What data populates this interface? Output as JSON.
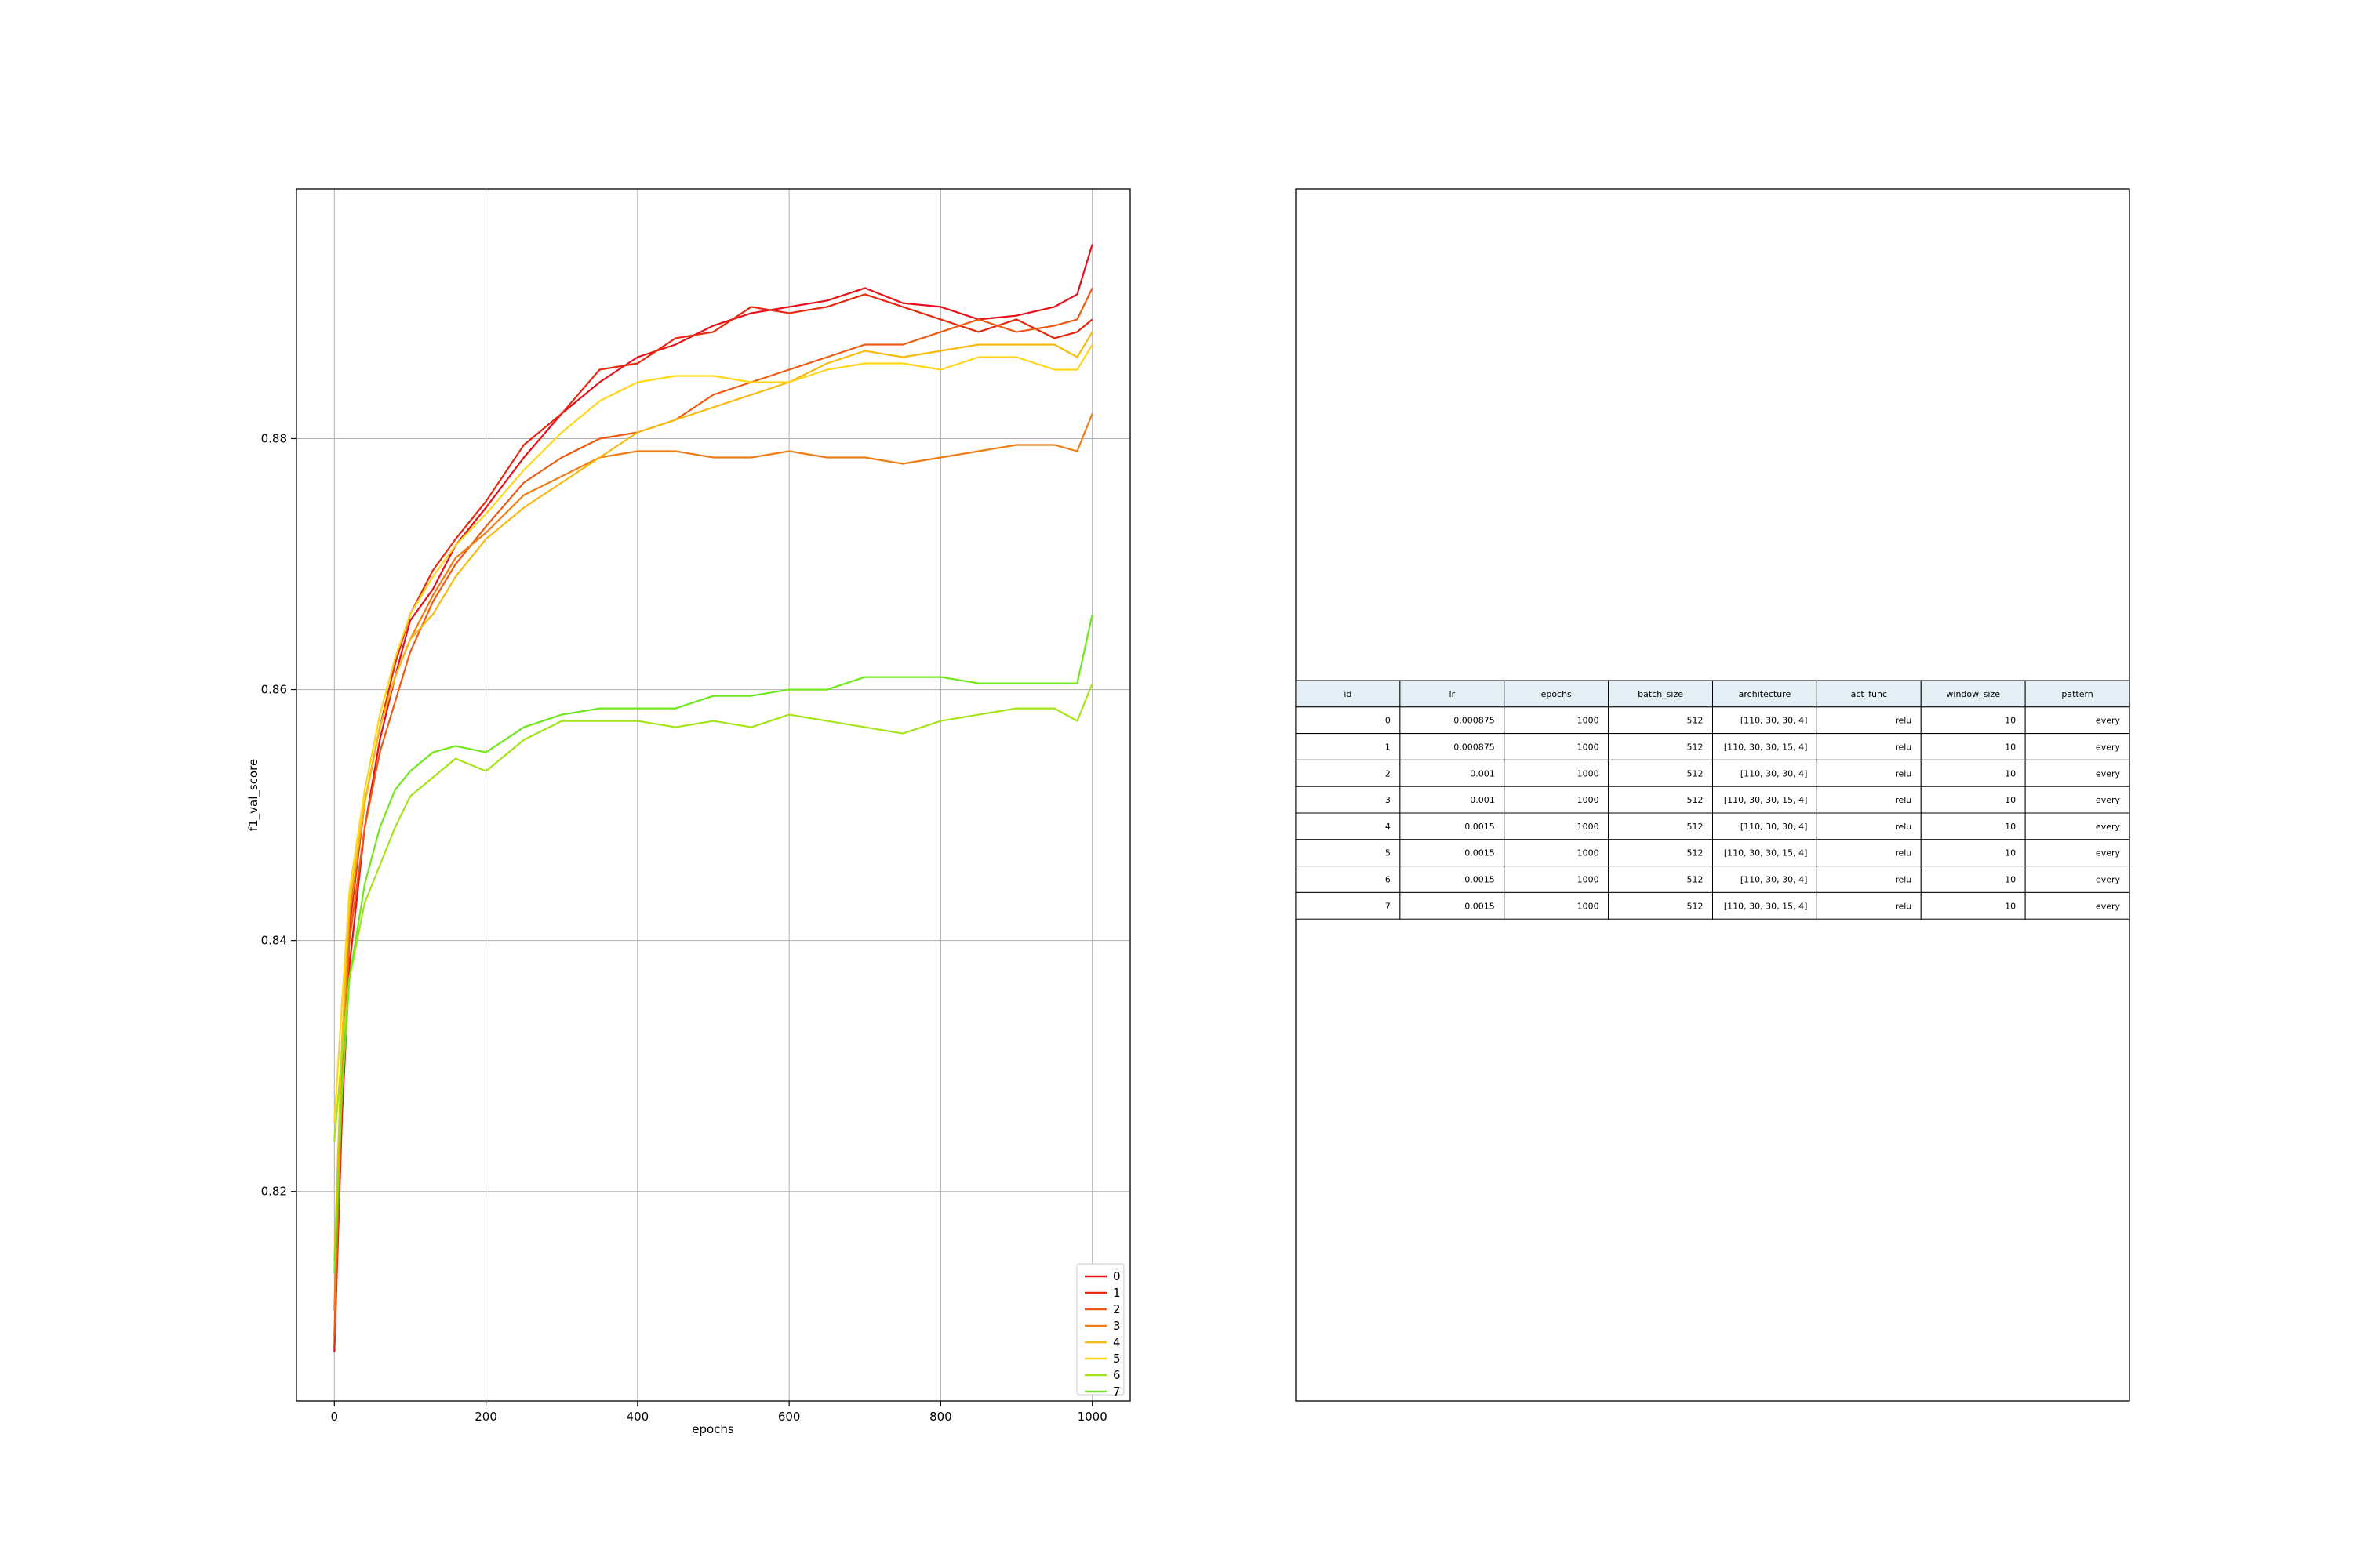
{
  "chart_data": [
    {
      "type": "line",
      "title": "",
      "xlabel": "epochs",
      "ylabel": "f1_val_score",
      "xlim": [
        -50,
        1050
      ],
      "ylim": [
        0.8033,
        0.8999
      ],
      "xticks": [
        0,
        200,
        400,
        600,
        800,
        1000
      ],
      "yticks": [
        0.82,
        0.84,
        0.86,
        0.88
      ],
      "xtick_labels": [
        "0",
        "200",
        "400",
        "600",
        "800",
        "1000"
      ],
      "ytick_labels": [
        "0.82",
        "0.84",
        "0.86",
        "0.88"
      ],
      "grid": true,
      "legend_position": "lower-right",
      "series": [
        {
          "name": "0",
          "color": "#e8101a",
          "points": [
            [
              0,
              0.8072
            ],
            [
              10,
              0.826
            ],
            [
              20,
              0.838
            ],
            [
              40,
              0.849
            ],
            [
              60,
              0.856
            ],
            [
              80,
              0.861
            ],
            [
              100,
              0.8655
            ],
            [
              130,
              0.868
            ],
            [
              160,
              0.8715
            ],
            [
              200,
              0.8745
            ],
            [
              250,
              0.8785
            ],
            [
              300,
              0.882
            ],
            [
              350,
              0.8845
            ],
            [
              400,
              0.8865
            ],
            [
              450,
              0.8875
            ],
            [
              500,
              0.889
            ],
            [
              550,
              0.89
            ],
            [
              600,
              0.8905
            ],
            [
              650,
              0.891
            ],
            [
              700,
              0.892
            ],
            [
              750,
              0.8908
            ],
            [
              800,
              0.8905
            ],
            [
              850,
              0.8895
            ],
            [
              900,
              0.8898
            ],
            [
              950,
              0.8905
            ],
            [
              980,
              0.8915
            ],
            [
              1000,
              0.8955
            ]
          ]
        },
        {
          "name": "1",
          "color": "#e52a10",
          "points": [
            [
              0,
              0.8075
            ],
            [
              10,
              0.829
            ],
            [
              20,
              0.841
            ],
            [
              40,
              0.851
            ],
            [
              60,
              0.857
            ],
            [
              80,
              0.862
            ],
            [
              100,
              0.866
            ],
            [
              130,
              0.8695
            ],
            [
              160,
              0.872
            ],
            [
              200,
              0.875
            ],
            [
              250,
              0.8795
            ],
            [
              300,
              0.882
            ],
            [
              350,
              0.8855
            ],
            [
              400,
              0.886
            ],
            [
              450,
              0.888
            ],
            [
              500,
              0.8885
            ],
            [
              550,
              0.8905
            ],
            [
              600,
              0.89
            ],
            [
              650,
              0.8905
            ],
            [
              700,
              0.8915
            ],
            [
              750,
              0.8905
            ],
            [
              800,
              0.8895
            ],
            [
              850,
              0.8885
            ],
            [
              900,
              0.8895
            ],
            [
              950,
              0.888
            ],
            [
              980,
              0.8885
            ],
            [
              1000,
              0.8895
            ]
          ]
        },
        {
          "name": "2",
          "color": "#ee5a12",
          "points": [
            [
              0,
              0.8085
            ],
            [
              10,
              0.828
            ],
            [
              20,
              0.84
            ],
            [
              40,
              0.849
            ],
            [
              60,
              0.855
            ],
            [
              80,
              0.859
            ],
            [
              100,
              0.863
            ],
            [
              130,
              0.867
            ],
            [
              160,
              0.87
            ],
            [
              200,
              0.873
            ],
            [
              250,
              0.8765
            ],
            [
              300,
              0.8785
            ],
            [
              350,
              0.88
            ],
            [
              400,
              0.8805
            ],
            [
              450,
              0.8815
            ],
            [
              500,
              0.8835
            ],
            [
              550,
              0.8845
            ],
            [
              600,
              0.8855
            ],
            [
              650,
              0.8865
            ],
            [
              700,
              0.8875
            ],
            [
              750,
              0.8875
            ],
            [
              800,
              0.8885
            ],
            [
              850,
              0.8895
            ],
            [
              900,
              0.8885
            ],
            [
              950,
              0.889
            ],
            [
              980,
              0.8895
            ],
            [
              1000,
              0.892
            ]
          ]
        },
        {
          "name": "3",
          "color": "#f07d14",
          "points": [
            [
              0,
              0.8105
            ],
            [
              10,
              0.83
            ],
            [
              20,
              0.842
            ],
            [
              40,
              0.851
            ],
            [
              60,
              0.857
            ],
            [
              80,
              0.861
            ],
            [
              100,
              0.864
            ],
            [
              130,
              0.8675
            ],
            [
              160,
              0.8705
            ],
            [
              200,
              0.8725
            ],
            [
              250,
              0.8755
            ],
            [
              300,
              0.877
            ],
            [
              350,
              0.8785
            ],
            [
              400,
              0.879
            ],
            [
              450,
              0.879
            ],
            [
              500,
              0.8785
            ],
            [
              550,
              0.8785
            ],
            [
              600,
              0.879
            ],
            [
              650,
              0.8785
            ],
            [
              700,
              0.8785
            ],
            [
              750,
              0.878
            ],
            [
              800,
              0.8785
            ],
            [
              850,
              0.879
            ],
            [
              900,
              0.8795
            ],
            [
              950,
              0.8795
            ],
            [
              980,
              0.879
            ],
            [
              1000,
              0.882
            ]
          ]
        },
        {
          "name": "4",
          "color": "#f8ba10",
          "points": [
            [
              0,
              0.8145
            ],
            [
              10,
              0.832
            ],
            [
              20,
              0.843
            ],
            [
              40,
              0.851
            ],
            [
              60,
              0.857
            ],
            [
              80,
              0.861
            ],
            [
              100,
              0.864
            ],
            [
              130,
              0.866
            ],
            [
              160,
              0.869
            ],
            [
              200,
              0.872
            ],
            [
              250,
              0.8745
            ],
            [
              300,
              0.8765
            ],
            [
              350,
              0.8785
            ],
            [
              400,
              0.8805
            ],
            [
              450,
              0.8815
            ],
            [
              500,
              0.8825
            ],
            [
              550,
              0.8835
            ],
            [
              600,
              0.8845
            ],
            [
              650,
              0.886
            ],
            [
              700,
              0.887
            ],
            [
              750,
              0.8865
            ],
            [
              800,
              0.887
            ],
            [
              850,
              0.8875
            ],
            [
              900,
              0.8875
            ],
            [
              950,
              0.8875
            ],
            [
              980,
              0.8865
            ],
            [
              1000,
              0.8885
            ]
          ]
        },
        {
          "name": "5",
          "color": "#ffd61a",
          "points": [
            [
              0,
              0.8255
            ],
            [
              10,
              0.835
            ],
            [
              20,
              0.844
            ],
            [
              40,
              0.852
            ],
            [
              60,
              0.858
            ],
            [
              80,
              0.8625
            ],
            [
              100,
              0.866
            ],
            [
              130,
              0.869
            ],
            [
              160,
              0.8715
            ],
            [
              200,
              0.874
            ],
            [
              250,
              0.8775
            ],
            [
              300,
              0.8805
            ],
            [
              350,
              0.883
            ],
            [
              400,
              0.8845
            ],
            [
              450,
              0.885
            ],
            [
              500,
              0.885
            ],
            [
              550,
              0.8845
            ],
            [
              600,
              0.8845
            ],
            [
              650,
              0.8855
            ],
            [
              700,
              0.886
            ],
            [
              750,
              0.886
            ],
            [
              800,
              0.8855
            ],
            [
              850,
              0.8865
            ],
            [
              900,
              0.8865
            ],
            [
              950,
              0.8855
            ],
            [
              980,
              0.8855
            ],
            [
              1000,
              0.8875
            ]
          ]
        },
        {
          "name": "6",
          "color": "#a4e41a",
          "points": [
            [
              0,
              0.824
            ],
            [
              10,
              0.831
            ],
            [
              20,
              0.837
            ],
            [
              40,
              0.843
            ],
            [
              60,
              0.846
            ],
            [
              80,
              0.849
            ],
            [
              100,
              0.8515
            ],
            [
              130,
              0.853
            ],
            [
              160,
              0.8545
            ],
            [
              200,
              0.8535
            ],
            [
              250,
              0.856
            ],
            [
              300,
              0.8575
            ],
            [
              350,
              0.8575
            ],
            [
              400,
              0.8575
            ],
            [
              450,
              0.857
            ],
            [
              500,
              0.8575
            ],
            [
              550,
              0.857
            ],
            [
              600,
              0.858
            ],
            [
              650,
              0.8575
            ],
            [
              700,
              0.857
            ],
            [
              750,
              0.8565
            ],
            [
              800,
              0.8575
            ],
            [
              850,
              0.858
            ],
            [
              900,
              0.8585
            ],
            [
              950,
              0.8585
            ],
            [
              980,
              0.8575
            ],
            [
              1000,
              0.8605
            ]
          ]
        },
        {
          "name": "7",
          "color": "#6fe81e",
          "points": [
            [
              0,
              0.8135
            ],
            [
              10,
              0.828
            ],
            [
              20,
              0.837
            ],
            [
              40,
              0.8445
            ],
            [
              60,
              0.849
            ],
            [
              80,
              0.852
            ],
            [
              100,
              0.8535
            ],
            [
              130,
              0.855
            ],
            [
              160,
              0.8555
            ],
            [
              200,
              0.855
            ],
            [
              250,
              0.857
            ],
            [
              300,
              0.858
            ],
            [
              350,
              0.8585
            ],
            [
              400,
              0.8585
            ],
            [
              450,
              0.8585
            ],
            [
              500,
              0.8595
            ],
            [
              550,
              0.8595
            ],
            [
              600,
              0.86
            ],
            [
              650,
              0.86
            ],
            [
              700,
              0.861
            ],
            [
              750,
              0.861
            ],
            [
              800,
              0.861
            ],
            [
              850,
              0.8605
            ],
            [
              900,
              0.8605
            ],
            [
              950,
              0.8605
            ],
            [
              980,
              0.8605
            ],
            [
              1000,
              0.866
            ]
          ]
        }
      ]
    },
    {
      "type": "table",
      "header_color": "#e5f0f6",
      "columns": [
        "id",
        "lr",
        "epochs",
        "batch_size",
        "architecture",
        "act_func",
        "window_size",
        "pattern"
      ],
      "rows": [
        [
          "0",
          "0.000875",
          "1000",
          "512",
          "[110, 30, 30, 4]",
          "relu",
          "10",
          "every"
        ],
        [
          "1",
          "0.000875",
          "1000",
          "512",
          "[110, 30, 30, 15, 4]",
          "relu",
          "10",
          "every"
        ],
        [
          "2",
          "0.001",
          "1000",
          "512",
          "[110, 30, 30, 4]",
          "relu",
          "10",
          "every"
        ],
        [
          "3",
          "0.001",
          "1000",
          "512",
          "[110, 30, 30, 15, 4]",
          "relu",
          "10",
          "every"
        ],
        [
          "4",
          "0.0015",
          "1000",
          "512",
          "[110, 30, 30, 4]",
          "relu",
          "10",
          "every"
        ],
        [
          "5",
          "0.0015",
          "1000",
          "512",
          "[110, 30, 30, 15, 4]",
          "relu",
          "10",
          "every"
        ],
        [
          "6",
          "0.0015",
          "1000",
          "512",
          "[110, 30, 30, 4]",
          "relu",
          "10",
          "every"
        ],
        [
          "7",
          "0.0015",
          "1000",
          "512",
          "[110, 30, 30, 15, 4]",
          "relu",
          "10",
          "every"
        ]
      ]
    }
  ]
}
